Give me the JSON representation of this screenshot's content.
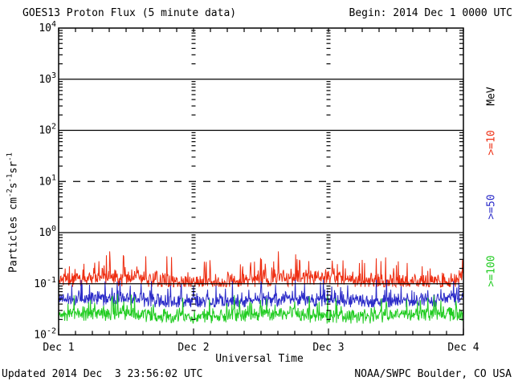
{
  "header": {
    "title": "GOES13 Proton Flux (5 minute data)",
    "begin": "Begin: 2014 Dec 1 0000 UTC"
  },
  "footer": {
    "updated": "Updated 2014 Dec  3 23:56:02 UTC",
    "source": "NOAA/SWPC Boulder, CO USA"
  },
  "y_axis": {
    "title_parts": {
      "t1": "Particles cm",
      "s1": "-2",
      "t2": "s",
      "s2": "-1",
      "t3": "sr",
      "s3": "-1"
    }
  },
  "legend": {
    "unit": "MeV",
    "items": [
      {
        "label": ">=10",
        "color": "#ee2e12"
      },
      {
        "label": ">=50",
        "color": "#2b2bc8"
      },
      {
        "label": ">=100",
        "color": "#21cc21"
      }
    ]
  },
  "chart_data": {
    "type": "line",
    "title": "GOES13 Proton Flux (5 minute data)",
    "subtitle": "Begin: 2014 Dec 1 0000 UTC",
    "xlabel": "Universal Time",
    "ylabel": "Particles cm^-2 s^-1 sr^-1",
    "x_ticks": [
      "Dec 1",
      "Dec 2",
      "Dec 3",
      "Dec 4"
    ],
    "x_days": 3,
    "samples_per_day": 288,
    "cadence_minutes": 5,
    "y_scale": "log10",
    "ylog_min": -2,
    "ylog_max": 4,
    "y_tick_exponents": [
      4,
      3,
      2,
      1,
      0,
      -1,
      -2
    ],
    "grid_hlines": [
      {
        "log": 3,
        "style": "solid"
      },
      {
        "log": 2,
        "style": "solid"
      },
      {
        "log": 1,
        "style": "dashed"
      },
      {
        "log": 0,
        "style": "solid"
      },
      {
        "log": -1,
        "style": "solid"
      }
    ],
    "grid_vline_days": [
      1,
      2
    ],
    "seed": 20141203,
    "series": [
      {
        "name": ">=10 MeV",
        "color": "#ee2e12",
        "typical_flux": 0.12,
        "peak_flux": 0.45,
        "min_flux": 0.085,
        "log_base": -0.93,
        "log_jitter": 0.2,
        "spike_prob": 0.12,
        "spike_amp": 0.45,
        "floor_log": -1.06,
        "cap_log": -0.33,
        "mod_amp": 0.05,
        "mod_period": 420
      },
      {
        "name": ">=50 MeV",
        "color": "#2b2bc8",
        "typical_flux": 0.05,
        "peak_flux": 0.12,
        "min_flux": 0.035,
        "log_base": -1.32,
        "log_jitter": 0.17,
        "spike_prob": 0.1,
        "spike_amp": 0.38,
        "floor_log": -1.46,
        "cap_log": -0.92,
        "mod_amp": 0.03,
        "mod_period": 390
      },
      {
        "name": ">=100 MeV",
        "color": "#21cc21",
        "typical_flux": 0.024,
        "peak_flux": 0.06,
        "min_flux": 0.017,
        "log_base": -1.62,
        "log_jitter": 0.16,
        "spike_prob": 0.1,
        "spike_amp": 0.38,
        "floor_log": -1.78,
        "cap_log": -1.2,
        "mod_amp": 0.03,
        "mod_period": 360
      }
    ]
  }
}
